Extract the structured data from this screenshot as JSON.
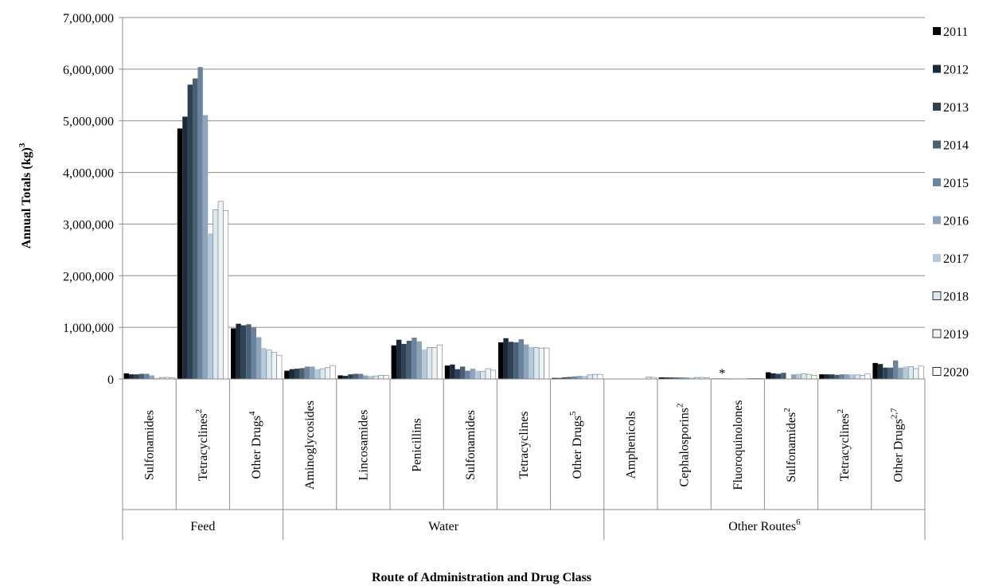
{
  "chart_data": {
    "type": "bar",
    "xlabel": "Route of Administration and Drug Class",
    "ylabel": "Annual Totals (kg)",
    "ylabel_sup": "3",
    "ylim": [
      0,
      7000000
    ],
    "yticks": [
      "0",
      "1,000,000",
      "2,000,000",
      "3,000,000",
      "4,000,000",
      "5,000,000",
      "6,000,000",
      "7,000,000"
    ],
    "grid": true,
    "legend_position": "right",
    "series_names": [
      "2011",
      "2012",
      "2013",
      "2014",
      "2015",
      "2016",
      "2017",
      "2018",
      "2019",
      "2020"
    ],
    "series_colors": [
      "#000000",
      "#1b2a3a",
      "#2f4253",
      "#4a6073",
      "#6a83a0",
      "#8ea4b8",
      "#b5c9d8",
      "#dbe8ef",
      "#eef3f1",
      "#ffffff"
    ],
    "groups": [
      {
        "label": "Feed",
        "sup": "",
        "start": 0,
        "count": 3
      },
      {
        "label": "Water",
        "sup": "",
        "start": 3,
        "count": 6
      },
      {
        "label": "Other Routes",
        "sup": "6",
        "start": 9,
        "count": 6
      }
    ],
    "categories": [
      {
        "label": "Sulfonamides",
        "sup": "",
        "values": [
          110000,
          90000,
          90000,
          100000,
          100000,
          70000,
          20000,
          30000,
          30000,
          20000
        ]
      },
      {
        "label": "Tetracyclines",
        "sup": "2",
        "values": [
          4850000,
          5080000,
          5700000,
          5820000,
          6040000,
          5110000,
          2820000,
          3280000,
          3440000,
          3260000
        ]
      },
      {
        "label": "Other Drugs",
        "sup": "4",
        "values": [
          980000,
          1070000,
          1040000,
          1060000,
          1000000,
          810000,
          600000,
          560000,
          520000,
          460000
        ]
      },
      {
        "label": "Aminoglycosides",
        "sup": "",
        "values": [
          160000,
          190000,
          200000,
          210000,
          240000,
          240000,
          190000,
          200000,
          220000,
          260000
        ]
      },
      {
        "label": "Lincosamides",
        "sup": "",
        "values": [
          70000,
          60000,
          90000,
          100000,
          100000,
          70000,
          60000,
          60000,
          70000,
          70000
        ]
      },
      {
        "label": "Penicillins",
        "sup": "",
        "values": [
          650000,
          760000,
          680000,
          740000,
          800000,
          730000,
          570000,
          610000,
          610000,
          660000
        ]
      },
      {
        "label": "Sulfonamides",
        "sup": "",
        "values": [
          260000,
          280000,
          190000,
          240000,
          160000,
          200000,
          160000,
          150000,
          200000,
          170000
        ]
      },
      {
        "label": "Tetracyclines",
        "sup": "",
        "values": [
          710000,
          790000,
          720000,
          710000,
          770000,
          670000,
          620000,
          610000,
          600000,
          600000
        ]
      },
      {
        "label": "Other Drugs",
        "sup": "5",
        "values": [
          20000,
          20000,
          30000,
          40000,
          50000,
          60000,
          60000,
          80000,
          90000,
          90000
        ]
      },
      {
        "label": "Amphenicols",
        "sup": "",
        "values": [
          0,
          0,
          0,
          0,
          0,
          0,
          0,
          0,
          40000,
          30000
        ]
      },
      {
        "label": "Cephalosporins",
        "sup": "2",
        "values": [
          30000,
          30000,
          30000,
          30000,
          30000,
          30000,
          30000,
          30000,
          30000,
          20000
        ]
      },
      {
        "label": "Fluoroquinolones",
        "sup": "",
        "values": [
          10000,
          10000,
          10000,
          10000,
          10000,
          10000,
          10000,
          10000,
          10000,
          10000
        ],
        "note": "*"
      },
      {
        "label": "Sulfonamides",
        "sup": "2",
        "values": [
          130000,
          110000,
          100000,
          120000,
          0,
          90000,
          100000,
          100000,
          90000,
          70000
        ]
      },
      {
        "label": "Tetracyclines",
        "sup": "2",
        "values": [
          90000,
          90000,
          90000,
          80000,
          90000,
          90000,
          90000,
          80000,
          70000,
          100000
        ]
      },
      {
        "label": "Other Drugs",
        "sup": "2,7",
        "values": [
          310000,
          290000,
          220000,
          220000,
          360000,
          220000,
          240000,
          240000,
          200000,
          250000
        ]
      }
    ]
  }
}
